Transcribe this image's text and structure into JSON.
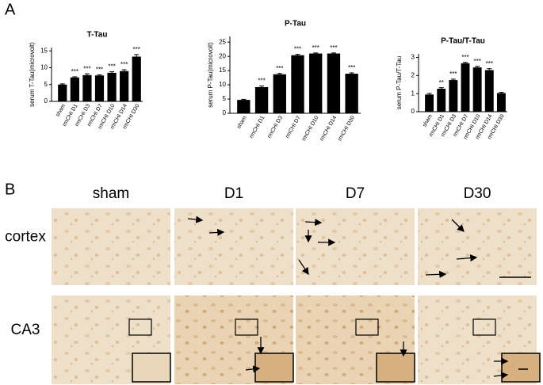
{
  "figure": {
    "panel_a": "A",
    "panel_b": "B"
  },
  "chart_data": [
    {
      "type": "bar",
      "title": "T-Tau",
      "y_label": "serum T-Tau(microvolt)",
      "color": "#000000",
      "categories": [
        "sham",
        "rmCHI D1",
        "rmCHI D3",
        "rmCHI D7",
        "rmCHI D10",
        "rmCHI D14",
        "rmCHI D30"
      ],
      "values": [
        5.0,
        7.1,
        7.8,
        7.7,
        8.5,
        9.0,
        13.3
      ],
      "errors": [
        0.2,
        0.2,
        0.4,
        0.2,
        0.3,
        0.4,
        0.6
      ],
      "annotations": [
        null,
        "***",
        "***",
        "***",
        "***",
        "***",
        "***"
      ],
      "ylim": [
        0,
        16
      ],
      "yticks": [
        0,
        5,
        10,
        15
      ]
    },
    {
      "type": "bar",
      "title": "P-Tau",
      "y_label": "serum P-Tau(microvolt)",
      "color": "#000000",
      "categories": [
        "sham",
        "rmCHI D1",
        "rmCHI D3",
        "rmCHI D7",
        "rmCHI D10",
        "rmCHI D14",
        "rmCHI D30"
      ],
      "values": [
        4.7,
        9.2,
        13.7,
        20.4,
        21.0,
        21.0,
        13.9
      ],
      "errors": [
        0.2,
        0.4,
        0.3,
        0.3,
        0.2,
        0.2,
        0.3
      ],
      "annotations": [
        null,
        "***",
        "***",
        "***",
        "***",
        "***",
        "***"
      ],
      "ylim": [
        0,
        27
      ],
      "yticks": [
        0,
        5,
        10,
        15,
        20,
        25
      ]
    },
    {
      "type": "bar",
      "title": "P-Tau/T-Tau",
      "y_label": "serum P-Tau/T-Tau",
      "color": "#000000",
      "categories": [
        "sham",
        "rmCHI D1",
        "rmCHI D3",
        "rmCHI D7",
        "rmCHI D10",
        "rmCHI D14",
        "rmCHI D30"
      ],
      "values": [
        0.95,
        1.27,
        1.75,
        2.68,
        2.45,
        2.3,
        1.03
      ],
      "errors": [
        0.06,
        0.06,
        0.05,
        0.05,
        0.06,
        0.08,
        0.04
      ],
      "annotations": [
        null,
        "**",
        "***",
        "***",
        "***",
        "***",
        null
      ],
      "ylim": [
        0,
        3.2
      ],
      "yticks": [
        0,
        1,
        2,
        3
      ]
    }
  ],
  "micrographs": {
    "columns": [
      "sham",
      "D1",
      "D7",
      "D30"
    ],
    "rows": [
      "cortex",
      "CA3"
    ]
  }
}
